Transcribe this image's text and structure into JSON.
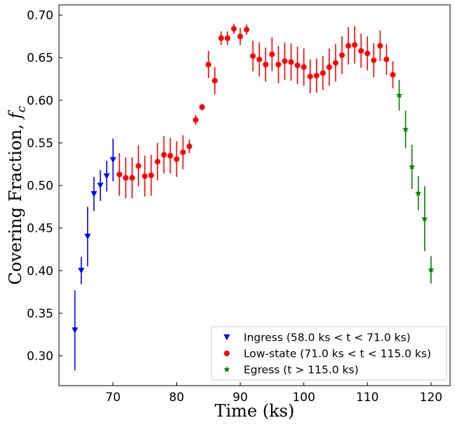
{
  "chart_data": {
    "type": "scatter",
    "title": "",
    "xlabel": "Time (ks)",
    "ylabel": "Covering Fraction, ",
    "ylabel_symbol": "f",
    "ylabel_subscript": "c",
    "xlim": [
      61.5,
      123
    ],
    "ylim": [
      0.265,
      0.712
    ],
    "xticks": [
      70,
      80,
      90,
      100,
      110,
      120
    ],
    "xtick_labels": [
      "70",
      "80",
      "90",
      "100",
      "110",
      "120"
    ],
    "yticks": [
      0.3,
      0.35,
      0.4,
      0.45,
      0.5,
      0.55,
      0.6,
      0.65,
      0.7
    ],
    "ytick_labels": [
      "0.30",
      "0.35",
      "0.40",
      "0.45",
      "0.50",
      "0.55",
      "0.60",
      "0.65",
      "0.70"
    ],
    "grid": false,
    "legend_position": "lower-right",
    "series": [
      {
        "name": "Ingress (58.0 ks < t < 71.0 ks)",
        "color": "#0000ff",
        "marker": "triangle-down",
        "x": [
          64,
          65,
          66,
          67,
          68,
          69,
          70
        ],
        "y": [
          0.33,
          0.4,
          0.44,
          0.49,
          0.5,
          0.511,
          0.53
        ],
        "yerr": [
          0.047,
          0.016,
          0.035,
          0.02,
          0.018,
          0.018,
          0.025
        ]
      },
      {
        "name": "Low-state (71.0 ks < t < 115.0 ks)",
        "color": "#ff0000",
        "marker": "circle",
        "x": [
          71,
          72,
          73,
          74,
          75,
          76,
          77,
          78,
          79,
          80,
          81,
          82,
          83,
          84,
          85,
          86,
          87,
          88,
          89,
          90,
          91,
          92,
          93,
          94,
          95,
          96,
          97,
          98,
          99,
          100,
          101,
          102,
          103,
          104,
          105,
          106,
          107,
          108,
          109,
          110,
          111,
          112,
          113,
          114
        ],
        "y": [
          0.513,
          0.509,
          0.509,
          0.523,
          0.511,
          0.512,
          0.528,
          0.536,
          0.535,
          0.531,
          0.539,
          0.546,
          0.577,
          0.592,
          0.642,
          0.623,
          0.673,
          0.673,
          0.684,
          0.675,
          0.683,
          0.652,
          0.648,
          0.642,
          0.654,
          0.642,
          0.646,
          0.645,
          0.641,
          0.639,
          0.628,
          0.629,
          0.632,
          0.639,
          0.644,
          0.653,
          0.664,
          0.665,
          0.658,
          0.655,
          0.647,
          0.664,
          0.648,
          0.63
        ],
        "yerr": [
          0.025,
          0.024,
          0.024,
          0.024,
          0.024,
          0.024,
          0.022,
          0.022,
          0.021,
          0.021,
          0.02,
          0.008,
          0.006,
          0.004,
          0.016,
          0.016,
          0.008,
          0.008,
          0.006,
          0.01,
          0.006,
          0.018,
          0.02,
          0.02,
          0.02,
          0.022,
          0.022,
          0.022,
          0.022,
          0.022,
          0.02,
          0.02,
          0.02,
          0.022,
          0.022,
          0.022,
          0.022,
          0.022,
          0.02,
          0.02,
          0.02,
          0.018,
          0.018,
          0.016
        ]
      },
      {
        "name": "Egress (t > 115.0 ks)",
        "color": "#008000",
        "marker": "star",
        "x": [
          115,
          116,
          117,
          118,
          119,
          120
        ],
        "y": [
          0.606,
          0.566,
          0.522,
          0.491,
          0.461,
          0.401
        ],
        "yerr": [
          0.018,
          0.022,
          0.026,
          0.02,
          0.038,
          0.016
        ]
      }
    ]
  }
}
